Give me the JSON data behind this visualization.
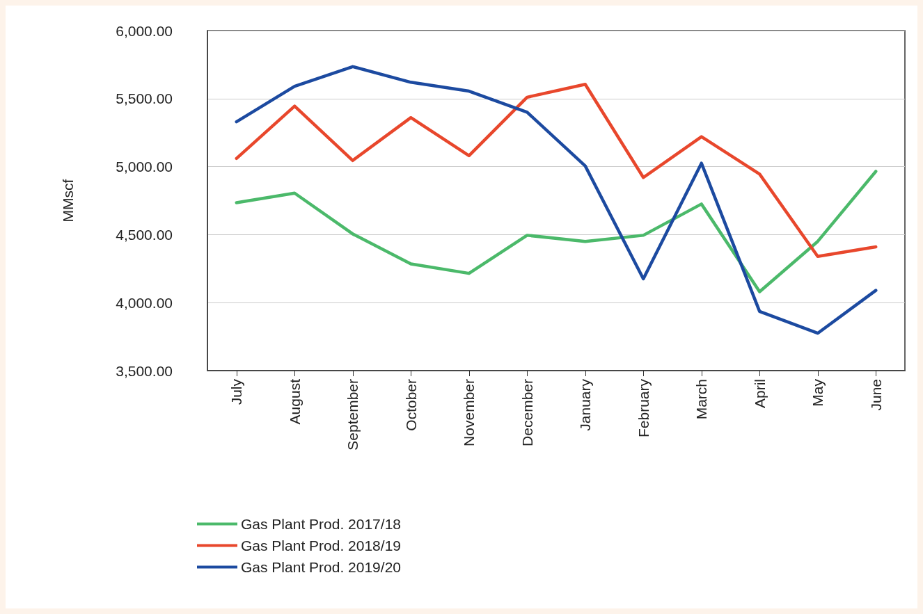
{
  "chart_data": {
    "type": "line",
    "ylabel": "MMscf",
    "categories": [
      "July",
      "August",
      "September",
      "October",
      "November",
      "December",
      "January",
      "February",
      "March",
      "April",
      "May",
      "June"
    ],
    "series": [
      {
        "name": "Gas Plant Prod. 2017/18",
        "color": "#4bb96a",
        "values": [
          4735,
          4805,
          4505,
          4285,
          4215,
          4495,
          4450,
          4495,
          4725,
          4080,
          4450,
          4965
        ]
      },
      {
        "name": "Gas Plant Prod. 2018/19",
        "color": "#e8472c",
        "values": [
          5060,
          5445,
          5045,
          5360,
          5080,
          5510,
          5605,
          4920,
          5220,
          4945,
          4340,
          4410
        ]
      },
      {
        "name": "Gas Plant Prod. 2019/20",
        "color": "#1c4aa0",
        "values": [
          5330,
          5590,
          5735,
          5620,
          5555,
          5400,
          5005,
          4175,
          5025,
          3935,
          3775,
          4090
        ]
      }
    ],
    "ylim": [
      3500,
      6000
    ],
    "yticks": [
      {
        "value": 3500,
        "label": "3,500.00"
      },
      {
        "value": 4000,
        "label": "4,000.00"
      },
      {
        "value": 4500,
        "label": "4,500.00"
      },
      {
        "value": 5000,
        "label": "5,000.00"
      },
      {
        "value": 5500,
        "label": "5,500.00"
      },
      {
        "value": 6000,
        "label": "6,000.00"
      }
    ],
    "grid": "y",
    "legend": "bottom",
    "marker": "none",
    "line_style": "solid"
  }
}
